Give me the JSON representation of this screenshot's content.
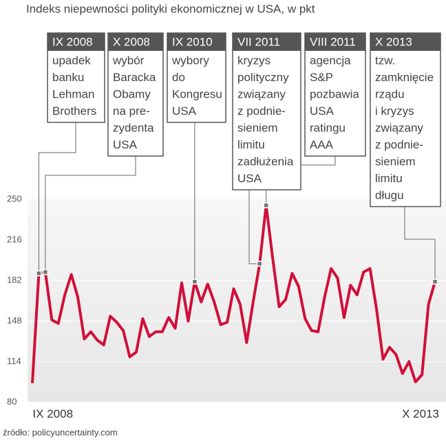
{
  "chart_data": {
    "type": "line",
    "title": "Indeks niepewności polityki ekonomicznej w USA, w pkt",
    "source": "źródło: policyuncertainty.com",
    "categories": [
      null,
      "IX 2008",
      null,
      null,
      null,
      null,
      null,
      null,
      null,
      null,
      null,
      null,
      null,
      null,
      null,
      null,
      null,
      null,
      null,
      null,
      null,
      null,
      null,
      null,
      null,
      null,
      null,
      null,
      null,
      null,
      null,
      null,
      null,
      null,
      null,
      null,
      null,
      null,
      null,
      null,
      null,
      null,
      null,
      null,
      null,
      null,
      null,
      null,
      null,
      null,
      null,
      null,
      null,
      null,
      null,
      null,
      null,
      null,
      null,
      null,
      null,
      null,
      "X 2013"
    ],
    "series": [
      {
        "color": "#d0103a",
        "values": [
          96,
          188,
          189,
          149,
          146,
          170,
          187,
          168,
          133,
          139,
          132,
          128,
          152,
          147,
          140,
          118,
          122,
          150,
          135,
          139,
          139,
          151,
          142,
          180,
          148,
          181,
          164,
          179,
          164,
          145,
          147,
          175,
          162,
          130,
          164,
          196,
          245,
          201,
          160,
          166,
          188,
          177,
          150,
          140,
          139,
          168,
          192,
          184,
          151,
          178,
          170,
          189,
          192,
          158,
          116,
          126,
          120,
          104,
          114,
          97,
          103,
          162,
          181
        ]
      }
    ],
    "ylim": [
      80,
      250
    ],
    "yticks": [
      80,
      114,
      148,
      182,
      216,
      250
    ],
    "annotations": [
      {
        "label": "IX 2008",
        "lines": [
          "upadek",
          "banku",
          "Lehman",
          "Brothers"
        ]
      },
      {
        "label": "X 2008",
        "lines": [
          "wybór",
          "Baracka",
          "Obamy",
          "na pre-",
          "zydenta",
          "USA"
        ]
      },
      {
        "label": "IX 2010",
        "lines": [
          "wybory",
          "do",
          "Kongresu",
          "USA"
        ]
      },
      {
        "label": "VII 2011",
        "lines": [
          "kryzys",
          "polityczny",
          "związany",
          "z podnie-",
          "sieniem",
          "limitu",
          "zadłużenia",
          "USA"
        ]
      },
      {
        "label": "VIII 2011",
        "lines": [
          "agencja",
          "S&P",
          "pozbawia",
          "USA",
          "ratingu",
          "AAA"
        ]
      },
      {
        "label": "X 2013",
        "lines": [
          "tzw.",
          "zamknięcie",
          "rządu",
          "i kryzys",
          "związany",
          "z podnie-",
          "sieniem",
          "limitu",
          "długu"
        ]
      }
    ]
  }
}
